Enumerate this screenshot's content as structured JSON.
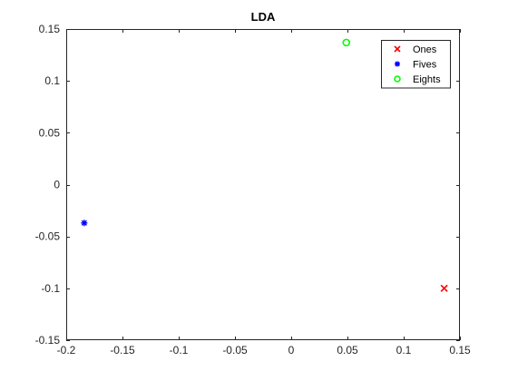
{
  "chart_data": {
    "type": "scatter",
    "title": "LDA",
    "xlabel": "",
    "ylabel": "",
    "xlim": [
      -0.2,
      0.15
    ],
    "ylim": [
      -0.15,
      0.15
    ],
    "x_ticks": [
      -0.2,
      -0.15,
      -0.1,
      -0.05,
      0,
      0.05,
      0.1,
      0.15
    ],
    "x_tick_labels": [
      "-0.2",
      "-0.15",
      "-0.1",
      "-0.05",
      "0",
      "0.05",
      "0.1",
      "0.15"
    ],
    "y_ticks": [
      0.15,
      0.1,
      0.05,
      0,
      -0.05,
      -0.1,
      -0.15
    ],
    "y_tick_labels": [
      "0.15",
      "0.1",
      "0.05",
      "0",
      "-0.05",
      "-0.1",
      "-0.15"
    ],
    "grid": false,
    "legend_position": "top-right",
    "series": [
      {
        "name": "Ones",
        "marker": "x",
        "color": "#ff0000",
        "points": [
          [
            0.136,
            -0.1
          ]
        ]
      },
      {
        "name": "Fives",
        "marker": "asterisk",
        "color": "#0000ff",
        "points": [
          [
            -0.184,
            -0.037
          ]
        ]
      },
      {
        "name": "Eights",
        "marker": "circle",
        "color": "#00ff00",
        "points": [
          [
            0.049,
            0.137
          ]
        ]
      }
    ]
  }
}
